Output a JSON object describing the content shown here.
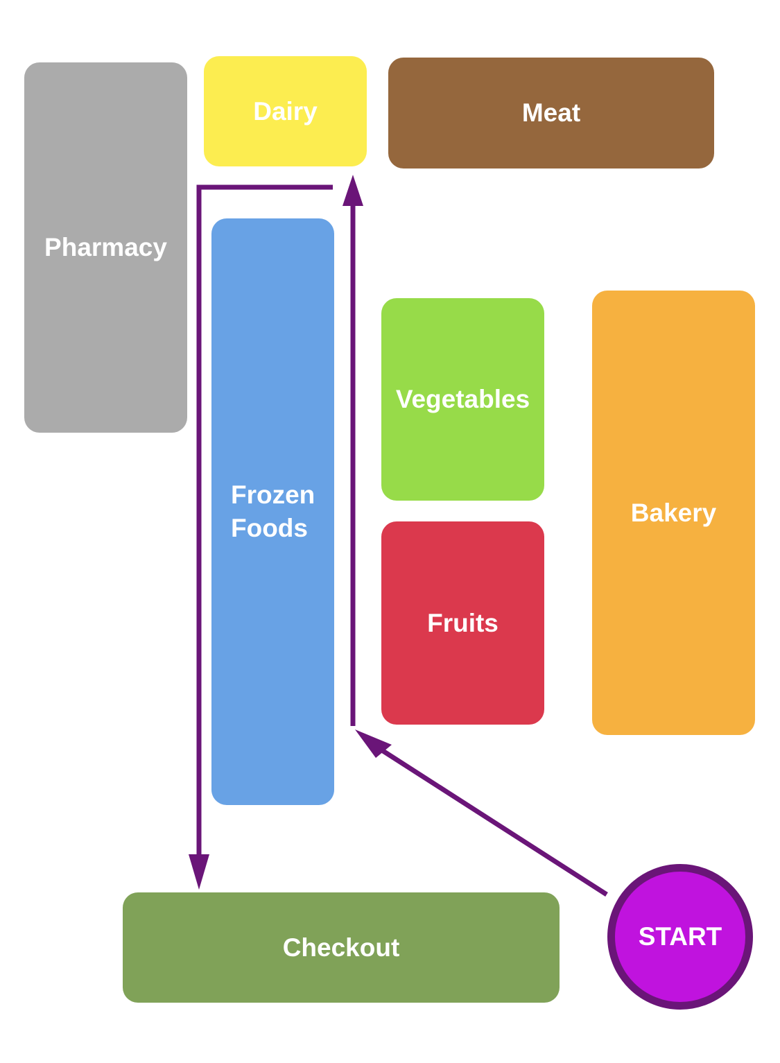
{
  "colors": {
    "pharmacy": "#ababab",
    "dairy": "#fced50",
    "meat": "#95673d",
    "frozen": "#68a2e5",
    "vegetables": "#97db49",
    "fruits": "#db394d",
    "bakery": "#f6b140",
    "checkout": "#80a258",
    "route": "#6a1578",
    "start_fill": "#c013de"
  },
  "sections": {
    "pharmacy": "Pharmacy",
    "dairy": "Dairy",
    "meat": "Meat",
    "frozen_line1": "Frozen",
    "frozen_line2": "Foods",
    "vegetables": "Vegetables",
    "fruits": "Fruits",
    "bakery": "Bakery",
    "checkout": "Checkout"
  },
  "start": {
    "label": "START"
  }
}
